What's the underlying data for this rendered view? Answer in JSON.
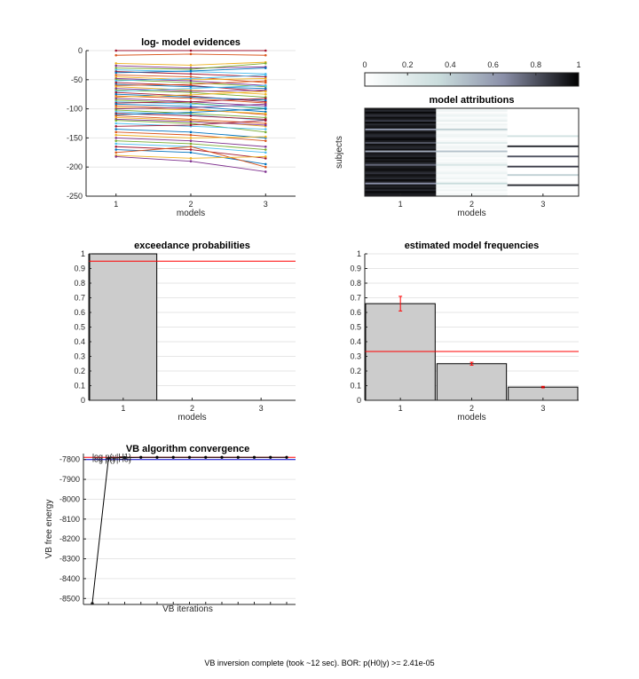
{
  "status_text": "VB inversion complete (took ~12 sec). BOR: p(H0|y) >= 2.41e-05",
  "chart_data": [
    {
      "id": "lme",
      "type": "line",
      "title": "log- model evidences",
      "xlabel": "models",
      "ylabel": "",
      "categories": [
        "1",
        "2",
        "3"
      ],
      "xlim": [
        0.6,
        3.4
      ],
      "ylim": [
        -250,
        0
      ],
      "yticks": [
        0,
        -50,
        -100,
        -150,
        -200,
        -250
      ],
      "series": [
        {
          "values": [
            0,
            0,
            0
          ]
        },
        {
          "values": [
            -8,
            -6,
            -8
          ]
        },
        {
          "values": [
            -22,
            -25,
            -20
          ]
        },
        {
          "values": [
            -26,
            -30,
            -28
          ]
        },
        {
          "values": [
            -30,
            -32,
            -22
          ]
        },
        {
          "values": [
            -33,
            -36,
            -40
          ]
        },
        {
          "values": [
            -36,
            -40,
            -45
          ]
        },
        {
          "values": [
            -38,
            -35,
            -30
          ]
        },
        {
          "values": [
            -42,
            -45,
            -55
          ]
        },
        {
          "values": [
            -45,
            -50,
            -48
          ]
        },
        {
          "values": [
            -48,
            -52,
            -60
          ]
        },
        {
          "values": [
            -50,
            -55,
            -62
          ]
        },
        {
          "values": [
            -52,
            -48,
            -42
          ]
        },
        {
          "values": [
            -55,
            -60,
            -70
          ]
        },
        {
          "values": [
            -58,
            -62,
            -65
          ]
        },
        {
          "values": [
            -60,
            -58,
            -52
          ]
        },
        {
          "values": [
            -62,
            -68,
            -75
          ]
        },
        {
          "values": [
            -65,
            -70,
            -68
          ]
        },
        {
          "values": [
            -68,
            -72,
            -80
          ]
        },
        {
          "values": [
            -70,
            -65,
            -60
          ]
        },
        {
          "values": [
            -72,
            -78,
            -88
          ]
        },
        {
          "values": [
            -75,
            -80,
            -85
          ]
        },
        {
          "values": [
            -78,
            -82,
            -90
          ]
        },
        {
          "values": [
            -80,
            -76,
            -70
          ]
        },
        {
          "values": [
            -82,
            -88,
            -95
          ]
        },
        {
          "values": [
            -85,
            -90,
            -100
          ]
        },
        {
          "values": [
            -88,
            -92,
            -98
          ]
        },
        {
          "values": [
            -90,
            -88,
            -82
          ]
        },
        {
          "values": [
            -92,
            -96,
            -105
          ]
        },
        {
          "values": [
            -95,
            -100,
            -110
          ]
        },
        {
          "values": [
            -98,
            -102,
            -108
          ]
        },
        {
          "values": [
            -100,
            -98,
            -92
          ]
        },
        {
          "values": [
            -102,
            -108,
            -115
          ]
        },
        {
          "values": [
            -105,
            -110,
            -120
          ]
        },
        {
          "values": [
            -108,
            -112,
            -118
          ]
        },
        {
          "values": [
            -110,
            -106,
            -100
          ]
        },
        {
          "values": [
            -112,
            -118,
            -125
          ]
        },
        {
          "values": [
            -115,
            -120,
            -130
          ]
        },
        {
          "values": [
            -118,
            -122,
            -128
          ]
        },
        {
          "values": [
            -120,
            -125,
            -140
          ]
        },
        {
          "values": [
            -125,
            -130,
            -135
          ]
        },
        {
          "values": [
            -130,
            -128,
            -120
          ]
        },
        {
          "values": [
            -135,
            -140,
            -150
          ]
        },
        {
          "values": [
            -140,
            -145,
            -155
          ]
        },
        {
          "values": [
            -145,
            -150,
            -148
          ]
        },
        {
          "values": [
            -150,
            -155,
            -165
          ]
        },
        {
          "values": [
            -155,
            -160,
            -170
          ]
        },
        {
          "values": [
            -160,
            -165,
            -175
          ]
        },
        {
          "values": [
            -165,
            -170,
            -185
          ]
        },
        {
          "values": [
            -170,
            -175,
            -195
          ]
        },
        {
          "values": [
            -175,
            -165,
            -200
          ]
        },
        {
          "values": [
            -180,
            -185,
            -182
          ]
        },
        {
          "values": [
            -182,
            -190,
            -208
          ]
        }
      ]
    },
    {
      "id": "attributions",
      "type": "heatmap",
      "title": "model attributions",
      "xlabel": "models",
      "ylabel": "subjects",
      "categories": [
        "1",
        "2",
        "3"
      ],
      "colorbar_ticks": [
        "0",
        "0.2",
        "0.4",
        "0.6",
        "0.8",
        "1"
      ],
      "values_col1": [
        0.95,
        0.9,
        0.98,
        0.92,
        0.88,
        0.97,
        0.93,
        0.85,
        0.99,
        0.9,
        0.94,
        0.96,
        0.6,
        0.92,
        0.97,
        0.91,
        0.89,
        0.95,
        0.98,
        0.93,
        0.8,
        0.96,
        0.92,
        0.9,
        0.97,
        0.55,
        0.95,
        0.93,
        0.91,
        0.98,
        0.94,
        0.96,
        0.9,
        0.75,
        0.93,
        0.95,
        0.97,
        0.92,
        0.88,
        0.96,
        0.94,
        0.9,
        0.97,
        0.93,
        0.65,
        0.95,
        0.92,
        0.96,
        0.9,
        0.98,
        0.94,
        0.93
      ],
      "values_col2": [
        0.05,
        0.1,
        0.02,
        0.08,
        0.12,
        0.03,
        0.07,
        0.15,
        0.01,
        0.1,
        0.06,
        0.04,
        0.4,
        0.08,
        0.03,
        0.09,
        0.11,
        0.05,
        0.02,
        0.07,
        0.2,
        0.04,
        0.08,
        0.1,
        0.03,
        0.45,
        0.05,
        0.07,
        0.09,
        0.02,
        0.06,
        0.04,
        0.1,
        0.25,
        0.07,
        0.05,
        0.03,
        0.08,
        0.12,
        0.04,
        0.06,
        0.1,
        0.03,
        0.07,
        0.35,
        0.05,
        0.08,
        0.04,
        0.1,
        0.02,
        0.06,
        0.07
      ],
      "values_col3": [
        0,
        0,
        0,
        0,
        0,
        0,
        0,
        0,
        0,
        0,
        0,
        0,
        0,
        0,
        0,
        0,
        0.3,
        0,
        0,
        0,
        0,
        0,
        0.9,
        0,
        0,
        0,
        0,
        0,
        0.8,
        0,
        0,
        0,
        0,
        0,
        0.85,
        0,
        0,
        0,
        0,
        0.4,
        0,
        0,
        0,
        0,
        0,
        0.9,
        0,
        0,
        0,
        0,
        0,
        0
      ]
    },
    {
      "id": "ep",
      "type": "bar",
      "title": "exceedance probabilities",
      "xlabel": "models",
      "ylabel": "",
      "categories": [
        "1",
        "2",
        "3"
      ],
      "values": [
        1.0,
        0.0,
        0.0
      ],
      "ylim": [
        0,
        1
      ],
      "yticks": [
        0,
        0.1,
        0.2,
        0.3,
        0.4,
        0.5,
        0.6,
        0.7,
        0.8,
        0.9,
        1
      ],
      "threshold": 0.95,
      "threshold_color": "#ff0000"
    },
    {
      "id": "freq",
      "type": "bar",
      "title": "estimated model frequencies",
      "xlabel": "models",
      "ylabel": "",
      "categories": [
        "1",
        "2",
        "3"
      ],
      "values": [
        0.66,
        0.25,
        0.09
      ],
      "errors": [
        0.05,
        0.01,
        0.005
      ],
      "ylim": [
        0,
        1
      ],
      "yticks": [
        0,
        0.1,
        0.2,
        0.3,
        0.4,
        0.5,
        0.6,
        0.7,
        0.8,
        0.9,
        1
      ],
      "threshold": 0.333,
      "threshold_color": "#ff0000"
    },
    {
      "id": "conv",
      "type": "line",
      "title": "VB algorithm convergence",
      "xlabel": "VB iterations",
      "ylabel": "VB free energy",
      "ylim": [
        -8530,
        -7770
      ],
      "yticks": [
        -7800,
        -7900,
        -8000,
        -8100,
        -8200,
        -8300,
        -8400,
        -8500
      ],
      "values": [
        -8525,
        -7793,
        -7790,
        -7789,
        -7789,
        -7789,
        -7789,
        -7789,
        -7789,
        -7789,
        -7789,
        -7789,
        -7789
      ],
      "legend": [
        {
          "label": "log p(y|H1)",
          "color": "#ff0000",
          "value": -7789
        },
        {
          "label": "log p(y|H0)",
          "color": "#0000cc",
          "value": -7800
        }
      ]
    }
  ]
}
